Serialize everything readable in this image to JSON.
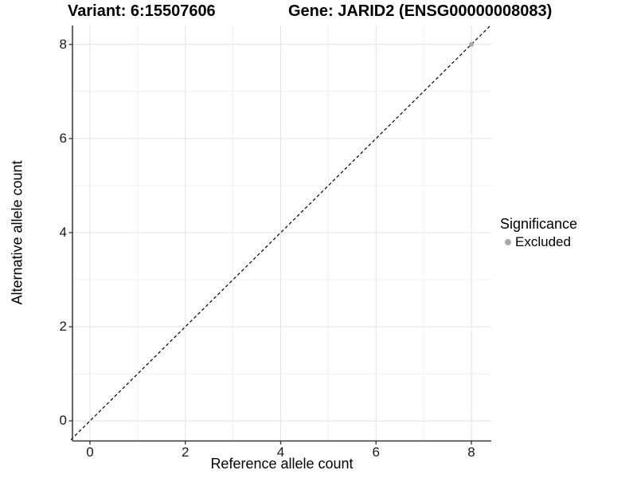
{
  "titles": {
    "variant": "Variant: 6:15507606",
    "gene": "Gene: JARID2 (ENSG00000008083)"
  },
  "axes": {
    "x": {
      "label": "Reference allele count",
      "tick_labels": [
        "0",
        "2",
        "4",
        "6",
        "8"
      ]
    },
    "y": {
      "label": "Alternative allele count",
      "tick_labels": [
        "0",
        "2",
        "4",
        "6",
        "8"
      ]
    }
  },
  "legend": {
    "title": "Significance",
    "items": [
      {
        "label": "Excluded",
        "color": "#aaaaaa"
      }
    ]
  },
  "colors": {
    "grid_major": "#e3e3e3",
    "grid_minor": "#f1f1f1",
    "axis_line": "#333333",
    "reference_line": "#000000",
    "point": "#aaaaaa"
  },
  "chart_data": {
    "type": "scatter",
    "title": "Variant: 6:15507606   Gene: JARID2 (ENSG00000008083)",
    "xlabel": "Reference allele count",
    "ylabel": "Alternative allele count",
    "xlim": [
      -0.4,
      8.4
    ],
    "ylim": [
      -0.4,
      8.4
    ],
    "x_ticks": [
      0,
      2,
      4,
      6,
      8
    ],
    "y_ticks": [
      0,
      2,
      4,
      6,
      8
    ],
    "x_minor_ticks": [
      1,
      3,
      5,
      7
    ],
    "y_minor_ticks": [
      1,
      3,
      5,
      7
    ],
    "grid": true,
    "legend_position": "right",
    "series": [
      {
        "name": "Excluded",
        "color": "#aaaaaa",
        "points": [
          [
            8,
            8
          ]
        ]
      }
    ],
    "reference_line": {
      "slope": 1,
      "intercept": 0,
      "style": "dashed",
      "color": "#000000"
    }
  }
}
